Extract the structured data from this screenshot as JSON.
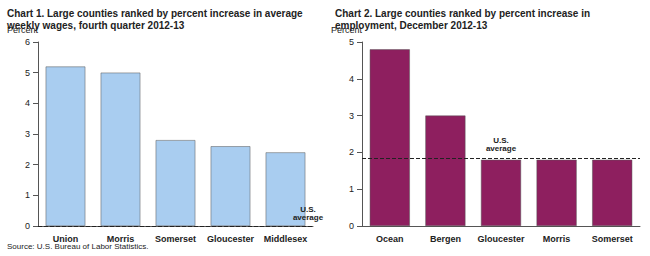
{
  "chart_data": [
    {
      "type": "bar",
      "title": "Chart 1. Large counties ranked by percent increase in average\nweekly wages, fourth quarter 2012-13",
      "y_label": "Percent",
      "categories": [
        "Union",
        "Morris",
        "Somerset",
        "Gloucester",
        "Middlesex"
      ],
      "values": [
        5.2,
        5.0,
        2.8,
        2.6,
        2.4
      ],
      "color": "#a9cdf0",
      "ylim": [
        0,
        6
      ],
      "yticks": [
        0,
        1,
        2,
        3,
        4,
        5,
        6
      ],
      "grid": false,
      "annotations": [
        {
          "text": "U.S.\naverage",
          "y": 0
        }
      ],
      "source": "Source: U.S. Bureau of Labor Statistics."
    },
    {
      "type": "bar",
      "title": "Chart 2. Large counties ranked by percent increase in\nemployment, December 2012-13",
      "y_label": "Percent",
      "categories": [
        "Ocean",
        "Bergen",
        "Gloucester",
        "Morris",
        "Somerset"
      ],
      "values": [
        4.8,
        3.0,
        1.8,
        1.8,
        1.8
      ],
      "color": "#8e1f5f",
      "ylim": [
        0,
        5
      ],
      "yticks": [
        0,
        1,
        2,
        3,
        4,
        5
      ],
      "grid": false,
      "annotations": [
        {
          "text": "U.S.\naverage",
          "y": 1.85
        }
      ]
    }
  ]
}
